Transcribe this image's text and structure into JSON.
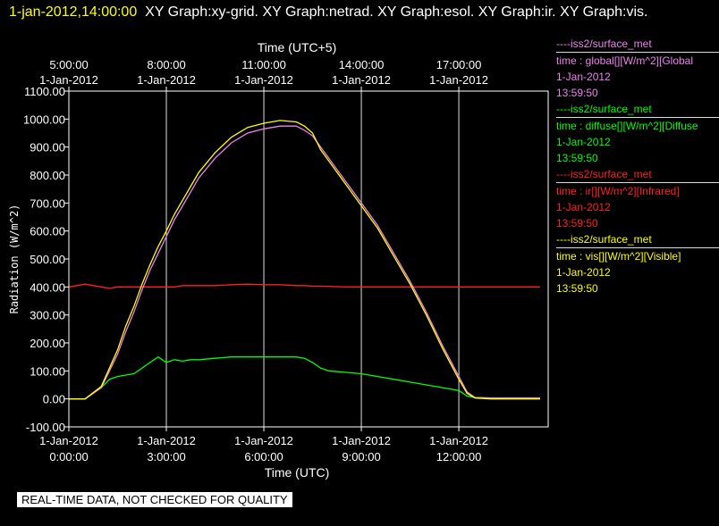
{
  "header": {
    "timestamp": "1-jan-2012,14:00:00",
    "graphs": "XY Graph:xy-grid.  XY Graph:netrad.  XY Graph:esol.  XY Graph:ir.  XY Graph:vis."
  },
  "note": "REAL-TIME DATA, NOT CHECKED FOR QUALITY",
  "legend": [
    {
      "source": "----iss2/surface_met",
      "desc": "time : global[][W/m^2][Global",
      "date": "1-Jan-2012",
      "time": "13:59:50",
      "color": "#ee82ee"
    },
    {
      "source": "----iss2/surface_met",
      "desc": "time : diffuse[][W/m^2][Diffuse",
      "date": "1-Jan-2012",
      "time": "13:59:50",
      "color": "#00ff00"
    },
    {
      "source": "----iss2/surface_met",
      "desc": "time : ir[][W/m^2][Infrared]",
      "date": "1-Jan-2012",
      "time": "13:59:50",
      "color": "#ff2020"
    },
    {
      "source": "----iss2/surface_met",
      "desc": "time : vis[][W/m^2][Visible]",
      "date": "1-Jan-2012",
      "time": "13:59:50",
      "color": "#ffff00"
    }
  ],
  "chart_data": {
    "type": "line",
    "xlabel": "Time (UTC)",
    "x2label": "Time (UTC+5)",
    "ylabel": "Radiation (W/m^2)",
    "xlim": [
      0,
      14.75
    ],
    "ylim": [
      -100,
      1100
    ],
    "grid": true,
    "legend_position": "right",
    "yticks": [
      "-100.00",
      "0.00",
      "100.00",
      "200.00",
      "300.00",
      "400.00",
      "500.00",
      "600.00",
      "700.00",
      "800.00",
      "900.00",
      "1000.00",
      "1100.00"
    ],
    "xticks": [
      {
        "value": 0,
        "date": "1-Jan-2012",
        "time": "0:00:00"
      },
      {
        "value": 3,
        "date": "1-Jan-2012",
        "time": "3:00:00"
      },
      {
        "value": 6,
        "date": "1-Jan-2012",
        "time": "6:00:00"
      },
      {
        "value": 9,
        "date": "1-Jan-2012",
        "time": "9:00:00"
      },
      {
        "value": 12,
        "date": "1-Jan-2012",
        "time": "12:00:00"
      }
    ],
    "x2ticks": [
      {
        "value": 0,
        "date": "1-Jan-2012",
        "time": "5:00:00"
      },
      {
        "value": 3,
        "date": "1-Jan-2012",
        "time": "8:00:00"
      },
      {
        "value": 6,
        "date": "1-Jan-2012",
        "time": "11:00:00"
      },
      {
        "value": 9,
        "date": "1-Jan-2012",
        "time": "14:00:00"
      },
      {
        "value": 12,
        "date": "1-Jan-2012",
        "time": "17:00:00"
      }
    ],
    "x": [
      0,
      0.5,
      1,
      1.25,
      1.5,
      1.75,
      2,
      2.25,
      2.5,
      2.75,
      3,
      3.25,
      3.5,
      3.75,
      4,
      4.5,
      5,
      5.5,
      6,
      6.5,
      7,
      7.25,
      7.5,
      7.75,
      8,
      8.5,
      9,
      9.5,
      10,
      10.5,
      11,
      11.5,
      12,
      12.25,
      12.5,
      13,
      13.5,
      14,
      14.5
    ],
    "series": [
      {
        "name": "global",
        "color": "#ee82ee",
        "values": [
          0,
          0,
          40,
          100,
          160,
          240,
          310,
          390,
          460,
          520,
          580,
          640,
          690,
          740,
          790,
          860,
          915,
          950,
          965,
          975,
          975,
          960,
          940,
          900,
          860,
          780,
          700,
          620,
          520,
          420,
          310,
          190,
          80,
          25,
          5,
          3,
          3,
          3,
          3
        ]
      },
      {
        "name": "diffuse",
        "color": "#00ff00",
        "values": [
          0,
          0,
          40,
          70,
          80,
          85,
          90,
          110,
          130,
          150,
          130,
          140,
          135,
          140,
          140,
          145,
          150,
          150,
          150,
          150,
          150,
          145,
          130,
          110,
          100,
          95,
          90,
          80,
          70,
          60,
          50,
          40,
          30,
          10,
          5,
          3,
          3,
          3,
          3
        ]
      },
      {
        "name": "ir",
        "color": "#ff2020",
        "values": [
          400,
          410,
          400,
          395,
          400,
          400,
          400,
          400,
          400,
          400,
          400,
          400,
          405,
          405,
          405,
          405,
          408,
          410,
          408,
          408,
          405,
          405,
          403,
          403,
          402,
          400,
          400,
          400,
          400,
          400,
          400,
          400,
          400,
          400,
          400,
          400,
          400,
          400,
          400
        ]
      },
      {
        "name": "vis",
        "color": "#ffff00",
        "values": [
          0,
          0,
          45,
          110,
          175,
          260,
          330,
          410,
          480,
          545,
          600,
          660,
          710,
          760,
          810,
          880,
          935,
          970,
          985,
          995,
          990,
          975,
          950,
          890,
          850,
          770,
          690,
          610,
          510,
          410,
          300,
          180,
          70,
          20,
          3,
          0,
          0,
          0,
          0
        ]
      }
    ]
  }
}
